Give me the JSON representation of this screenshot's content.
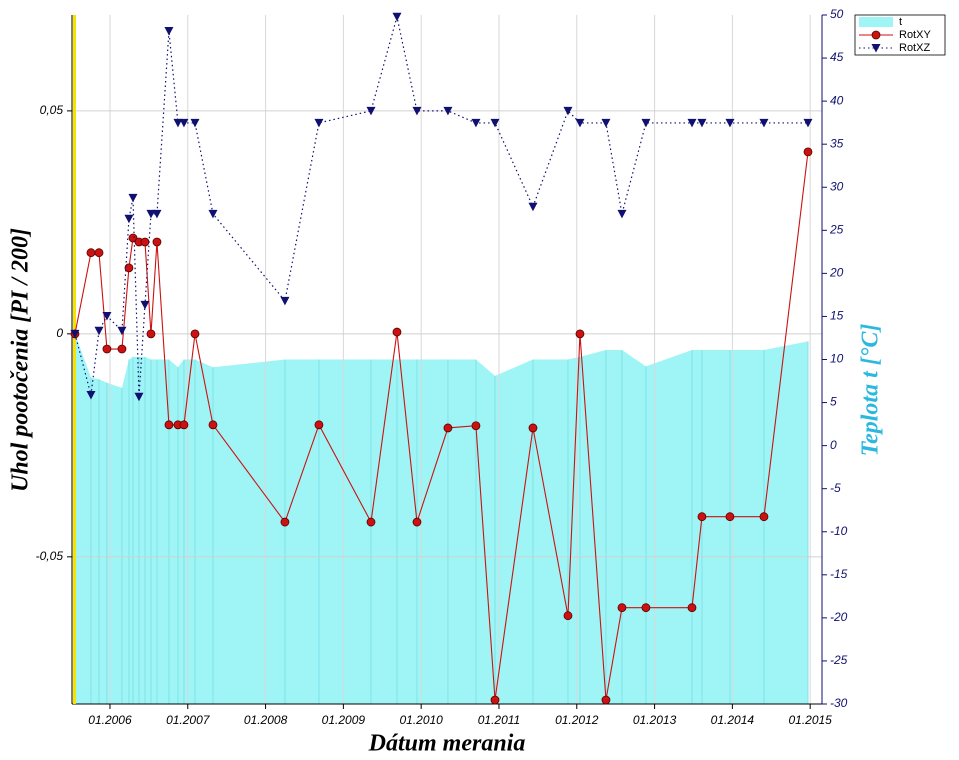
{
  "chart_data": {
    "type": "line",
    "x_label": "Dátum merania",
    "y_label": "Uhol pootočenia [PI / 200]",
    "y2_label": "Teplota t [°C]",
    "x": [
      2005.55,
      2005.756,
      2005.859,
      2005.961,
      2006.154,
      2006.244,
      2006.296,
      2006.373,
      2006.45,
      2006.527,
      2006.604,
      2006.758,
      2006.874,
      2006.951,
      2007.093,
      2007.324,
      2008.249,
      2008.686,
      2009.355,
      2009.689,
      2009.946,
      2010.344,
      2010.704,
      2010.949,
      2011.437,
      2011.887,
      2012.041,
      2012.375,
      2012.581,
      2012.889,
      2013.481,
      2013.609,
      2013.969,
      2014.406,
      2014.972
    ],
    "series": [
      {
        "name": "t",
        "color": "#9ff5f5",
        "axis": "y2",
        "fill": true,
        "values": [
          13,
          7.9,
          7.7,
          7.3,
          6.7,
          10,
          10.3,
          10.3,
          10.3,
          10,
          10,
          10,
          9.1,
          10,
          10,
          9.1,
          10,
          10,
          10,
          10,
          10,
          10,
          10,
          8.1,
          10,
          10,
          10.3,
          11.1,
          11.1,
          9.2,
          11.1,
          11.1,
          11.1,
          11.1,
          12.1
        ]
      },
      {
        "name": "RotXY",
        "color": "#cc1111",
        "marker": "circle",
        "dash": "solid",
        "values": [
          0,
          0.0182,
          0.0182,
          -0.0034,
          -0.0034,
          0.0148,
          0.0215,
          0.0206,
          0.0206,
          0,
          0.0206,
          -0.0204,
          -0.0204,
          -0.0204,
          0,
          -0.0204,
          -0.0422,
          -0.0204,
          -0.0422,
          0.0004,
          -0.0422,
          -0.0211,
          -0.0206,
          -0.0821,
          -0.0211,
          -0.0632,
          0,
          -0.0821,
          -0.0614,
          -0.0614,
          -0.0614,
          -0.041,
          -0.041,
          -0.041,
          0.0408
        ]
      },
      {
        "name": "RotXZ",
        "color": "#101070",
        "marker": "triangle-down",
        "dash": "dotted",
        "values": [
          0,
          -0.0137,
          0.0007,
          0.004,
          0.0007,
          0.0258,
          0.0305,
          -0.0141,
          0.0065,
          0.0269,
          0.0269,
          0.0679,
          0.0473,
          0.0473,
          0.0473,
          0.0269,
          0.0074,
          0.0473,
          0.05,
          0.0711,
          0.05,
          0.05,
          0.0473,
          0.0473,
          0.0285,
          0.05,
          0.0473,
          0.0473,
          0.0269,
          0.0473,
          0.0473,
          0.0473,
          0.0473,
          0.0473,
          0.0473
        ]
      }
    ],
    "xlim": [
      2005.512,
      2015.152
    ],
    "xticks": [
      {
        "value": 2006,
        "label": "01.2006"
      },
      {
        "value": 2007,
        "label": "01.2007"
      },
      {
        "value": 2008,
        "label": "01.2008"
      },
      {
        "value": 2009,
        "label": "01.2009"
      },
      {
        "value": 2010,
        "label": "01.2010"
      },
      {
        "value": 2011,
        "label": "01.2011"
      },
      {
        "value": 2012,
        "label": "01.2012"
      },
      {
        "value": 2013,
        "label": "01.2013"
      },
      {
        "value": 2014,
        "label": "01.2014"
      },
      {
        "value": 2015,
        "label": "01.2015"
      }
    ],
    "ylim": [
      -0.083,
      0.0715
    ],
    "yticks": [
      {
        "value": -0.05,
        "label": "-0,05"
      },
      0,
      {
        "value": 0.05,
        "label": "0,05"
      }
    ],
    "y2lim": [
      -30,
      50
    ],
    "y2ticks": [
      -30,
      -25,
      -20,
      -15,
      -10,
      -5,
      0,
      5,
      10,
      15,
      20,
      25,
      30,
      35,
      40,
      45,
      50
    ],
    "grid": true,
    "legend": "outside-top-right"
  }
}
